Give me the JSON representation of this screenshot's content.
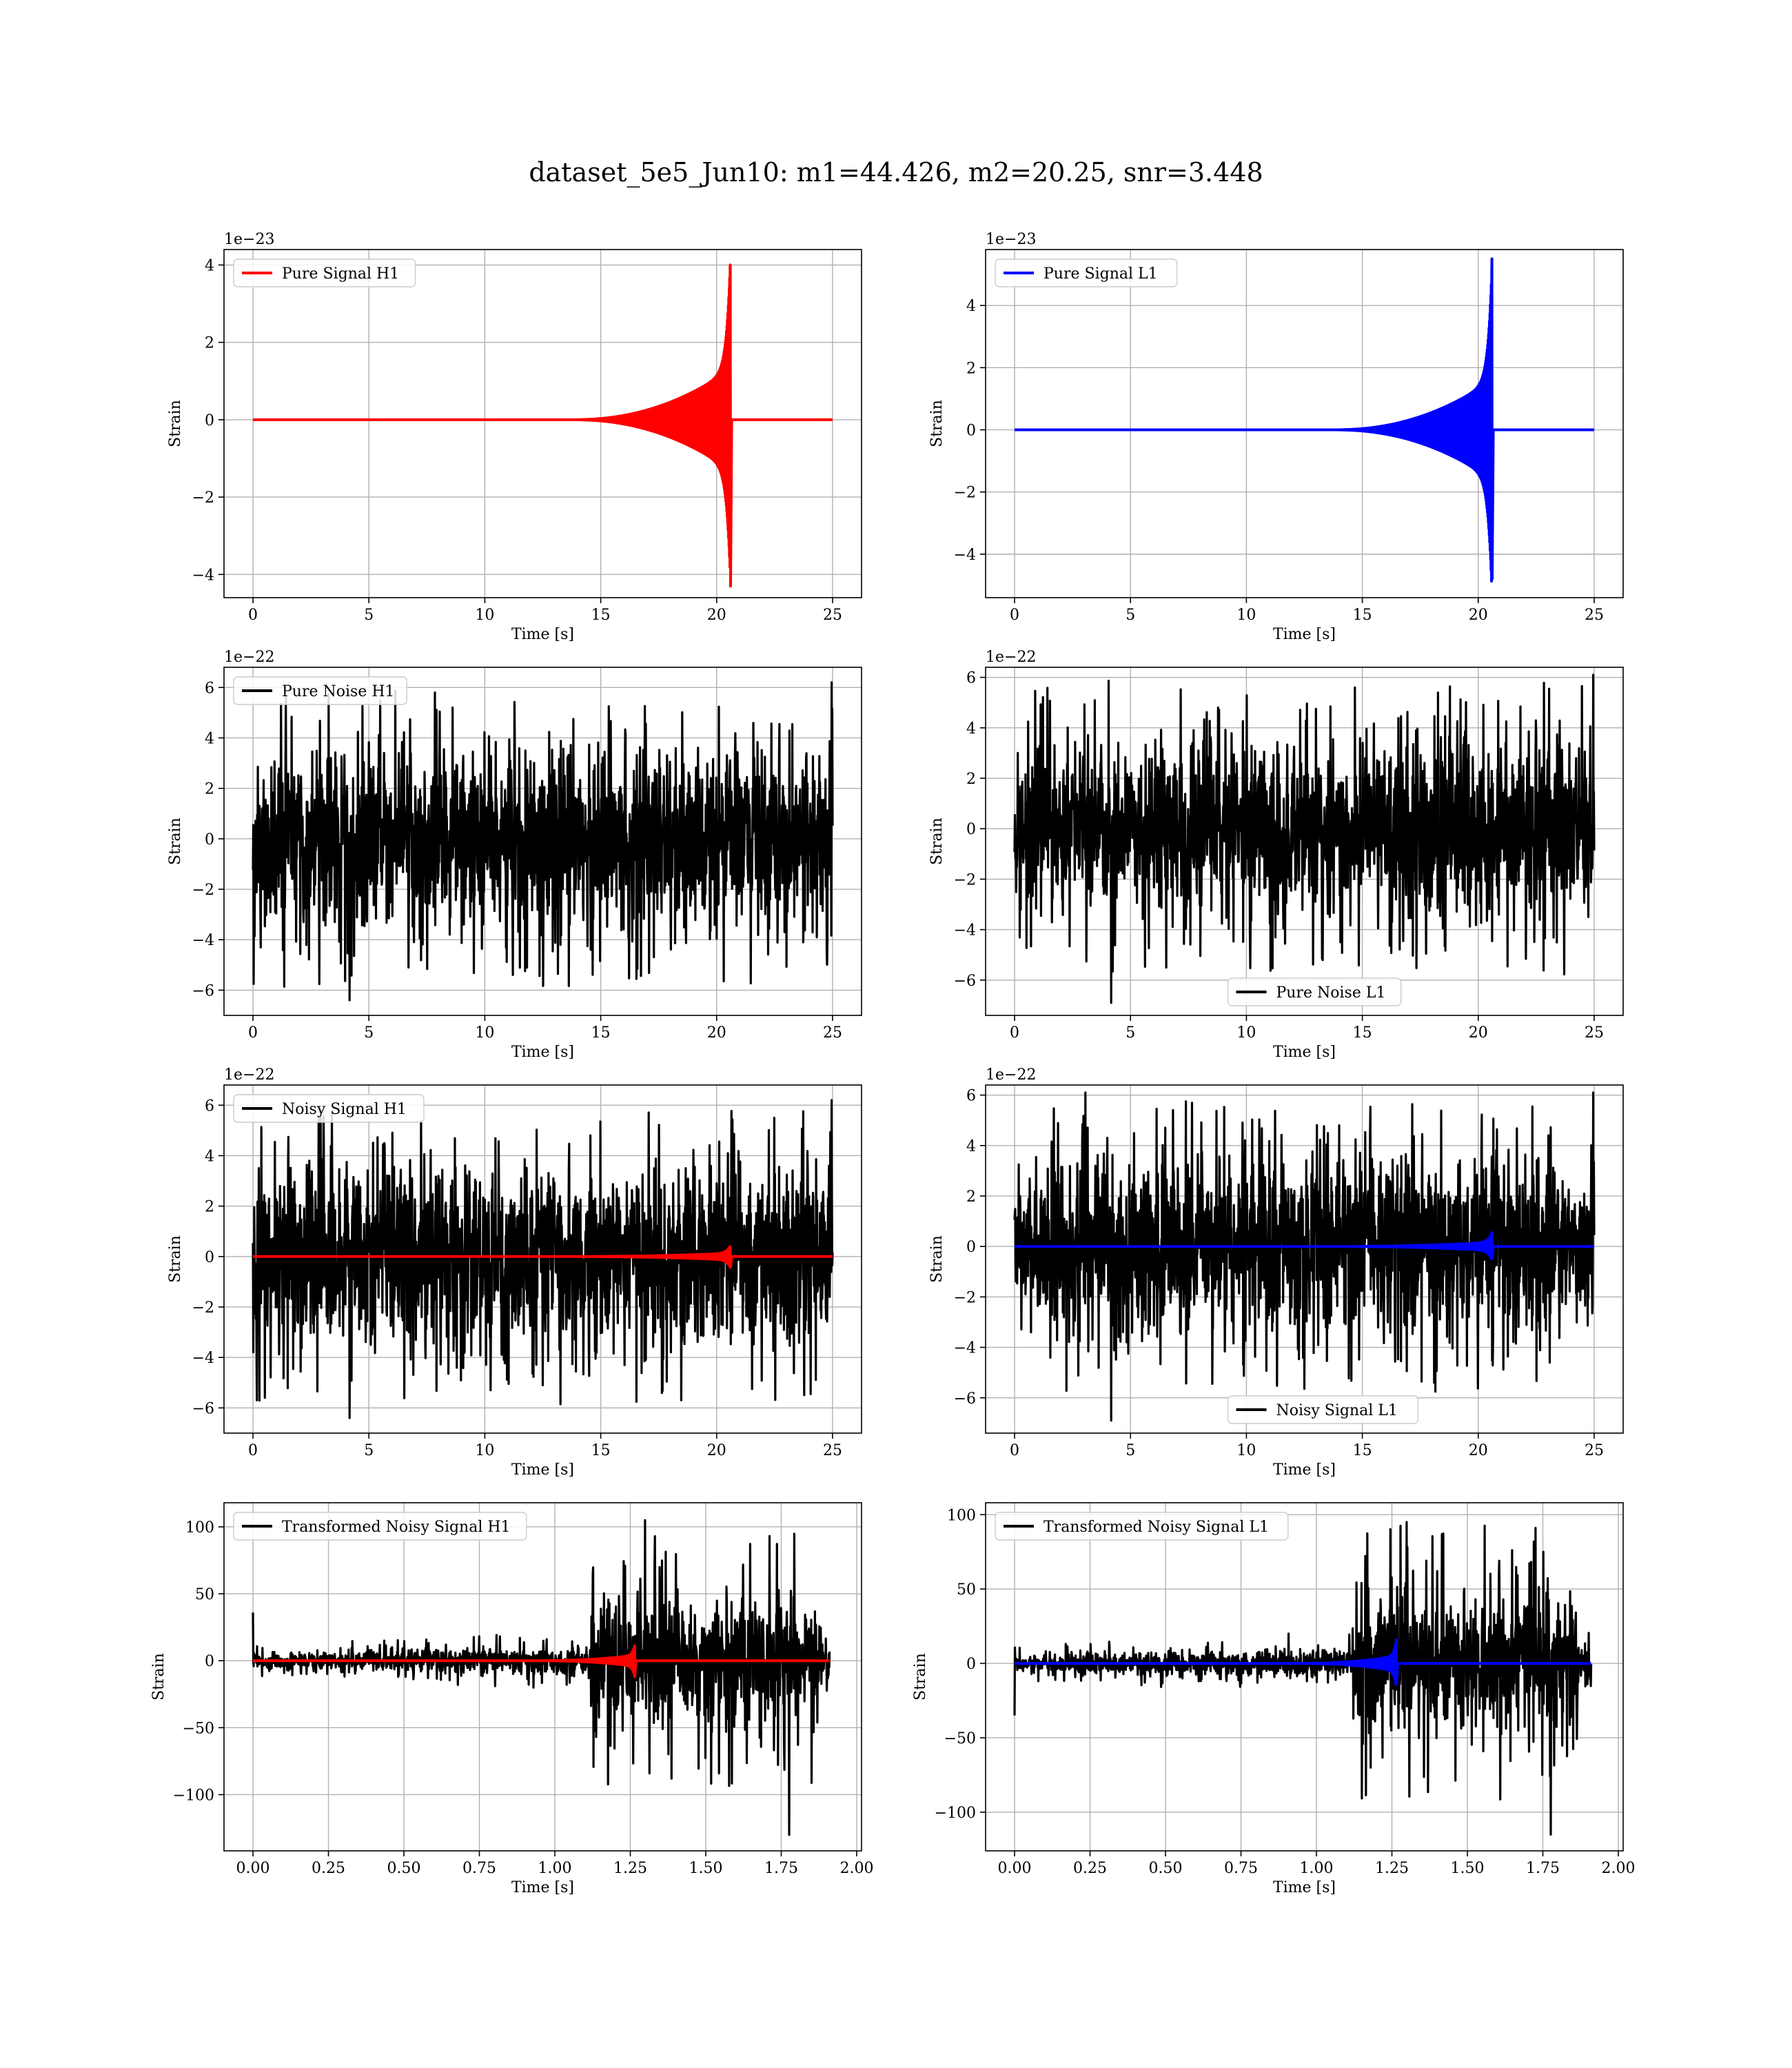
{
  "figure": {
    "title": "dataset_5e5_Jun10: m1=44.426, m2=20.25, snr=3.448",
    "colors": {
      "h1": "#ff0000",
      "l1": "#0000ff",
      "noise": "#000000",
      "grid": "#b0b0b0",
      "axes": "#000000"
    }
  },
  "chart_data": [
    {
      "id": "pure-signal-h1",
      "type": "line",
      "title": "",
      "xlabel": "Time [s]",
      "ylabel": "Strain",
      "offset_text": "1e−23",
      "xlim": [
        -1.25,
        26.25
      ],
      "ylim": [
        -4.6,
        4.4
      ],
      "xticks": [
        0,
        5,
        10,
        15,
        20,
        25
      ],
      "xtick_labels": [
        "0",
        "5",
        "10",
        "15",
        "20",
        "25"
      ],
      "yticks": [
        -4,
        -2,
        0,
        2,
        4
      ],
      "ytick_labels": [
        "−4",
        "−2",
        "0",
        "2",
        "4"
      ],
      "grid": true,
      "legend_position": "upper-left",
      "series": [
        {
          "name": "Pure Signal H1",
          "color": "#ff0000",
          "kind": "chirp",
          "x_range": [
            0,
            25
          ],
          "merger_time": 20.6,
          "peak_up": 4.0,
          "peak_down": -4.3,
          "inspiral_amplitude": 1.3
        }
      ]
    },
    {
      "id": "pure-signal-l1",
      "type": "line",
      "title": "",
      "xlabel": "Time [s]",
      "ylabel": "Strain",
      "offset_text": "1e−23",
      "xlim": [
        -1.25,
        26.25
      ],
      "ylim": [
        -5.4,
        5.8
      ],
      "xticks": [
        0,
        5,
        10,
        15,
        20,
        25
      ],
      "xtick_labels": [
        "0",
        "5",
        "10",
        "15",
        "20",
        "25"
      ],
      "yticks": [
        -4,
        -2,
        0,
        2,
        4
      ],
      "ytick_labels": [
        "−4",
        "−2",
        "0",
        "2",
        "4"
      ],
      "grid": true,
      "legend_position": "upper-left",
      "series": [
        {
          "name": "Pure Signal L1",
          "color": "#0000ff",
          "kind": "chirp",
          "x_range": [
            0,
            25
          ],
          "merger_time": 20.6,
          "peak_up": 5.5,
          "peak_down": -4.8,
          "inspiral_amplitude": 1.6
        }
      ]
    },
    {
      "id": "pure-noise-h1",
      "type": "line",
      "title": "",
      "xlabel": "Time [s]",
      "ylabel": "Strain",
      "offset_text": "1e−22",
      "xlim": [
        -1.25,
        26.25
      ],
      "ylim": [
        -7.0,
        6.8
      ],
      "xticks": [
        0,
        5,
        10,
        15,
        20,
        25
      ],
      "xtick_labels": [
        "0",
        "5",
        "10",
        "15",
        "20",
        "25"
      ],
      "yticks": [
        -6,
        -4,
        -2,
        0,
        2,
        4,
        6
      ],
      "ytick_labels": [
        "−6",
        "−4",
        "−2",
        "0",
        "2",
        "4",
        "6"
      ],
      "grid": true,
      "legend_position": "upper-left",
      "series": [
        {
          "name": "Pure Noise H1",
          "color": "#000000",
          "kind": "noise",
          "x_range": [
            0,
            25
          ],
          "band": [
            -3.0,
            3.0
          ],
          "max": 6.2,
          "min": -6.4
        }
      ]
    },
    {
      "id": "pure-noise-l1",
      "type": "line",
      "title": "",
      "xlabel": "Time [s]",
      "ylabel": "Strain",
      "offset_text": "1e−22",
      "xlim": [
        -1.25,
        26.25
      ],
      "ylim": [
        -7.4,
        6.4
      ],
      "xticks": [
        0,
        5,
        10,
        15,
        20,
        25
      ],
      "xtick_labels": [
        "0",
        "5",
        "10",
        "15",
        "20",
        "25"
      ],
      "yticks": [
        -6,
        -4,
        -2,
        0,
        2,
        4,
        6
      ],
      "ytick_labels": [
        "−6",
        "−4",
        "−2",
        "0",
        "2",
        "4",
        "6"
      ],
      "grid": true,
      "legend_position": "lower-right",
      "series": [
        {
          "name": "Pure Noise L1",
          "color": "#000000",
          "kind": "noise",
          "x_range": [
            0,
            25
          ],
          "band": [
            -3.0,
            3.0
          ],
          "max": 6.1,
          "min": -6.9
        }
      ]
    },
    {
      "id": "noisy-signal-h1",
      "type": "line",
      "title": "",
      "xlabel": "Time [s]",
      "ylabel": "Strain",
      "offset_text": "1e−22",
      "xlim": [
        -1.25,
        26.25
      ],
      "ylim": [
        -7.0,
        6.8
      ],
      "xticks": [
        0,
        5,
        10,
        15,
        20,
        25
      ],
      "xtick_labels": [
        "0",
        "5",
        "10",
        "15",
        "20",
        "25"
      ],
      "yticks": [
        -6,
        -4,
        -2,
        0,
        2,
        4,
        6
      ],
      "ytick_labels": [
        "−6",
        "−4",
        "−2",
        "0",
        "2",
        "4",
        "6"
      ],
      "grid": true,
      "legend_position": "upper-left",
      "series": [
        {
          "name": "Noisy Signal H1",
          "color": "#000000",
          "kind": "noise",
          "x_range": [
            0,
            25
          ],
          "band": [
            -3.0,
            3.0
          ],
          "max": 6.2,
          "min": -6.4
        },
        {
          "color": "#ff0000",
          "kind": "chirp",
          "x_range": [
            0,
            25
          ],
          "merger_time": 20.6,
          "peak_up": 0.4,
          "peak_down": -0.43,
          "inspiral_amplitude": 0.13
        }
      ]
    },
    {
      "id": "noisy-signal-l1",
      "type": "line",
      "title": "",
      "xlabel": "Time [s]",
      "ylabel": "Strain",
      "offset_text": "1e−22",
      "xlim": [
        -1.25,
        26.25
      ],
      "ylim": [
        -7.4,
        6.4
      ],
      "xticks": [
        0,
        5,
        10,
        15,
        20,
        25
      ],
      "xtick_labels": [
        "0",
        "5",
        "10",
        "15",
        "20",
        "25"
      ],
      "yticks": [
        -6,
        -4,
        -2,
        0,
        2,
        4,
        6
      ],
      "ytick_labels": [
        "−6",
        "−4",
        "−2",
        "0",
        "2",
        "4",
        "6"
      ],
      "grid": true,
      "legend_position": "lower-right",
      "series": [
        {
          "name": "Noisy Signal L1",
          "color": "#000000",
          "kind": "noise",
          "x_range": [
            0,
            25
          ],
          "band": [
            -3.0,
            3.0
          ],
          "max": 6.1,
          "min": -6.9
        },
        {
          "color": "#0000ff",
          "kind": "chirp",
          "x_range": [
            0,
            25
          ],
          "merger_time": 20.6,
          "peak_up": 0.55,
          "peak_down": -0.48,
          "inspiral_amplitude": 0.16
        }
      ]
    },
    {
      "id": "transformed-noisy-signal-h1",
      "type": "line",
      "title": "",
      "xlabel": "Time [s]",
      "ylabel": "Strain",
      "offset_text": "",
      "xlim": [
        -0.096,
        2.016
      ],
      "ylim": [
        -142,
        118
      ],
      "xticks": [
        0,
        0.25,
        0.5,
        0.75,
        1.0,
        1.25,
        1.5,
        1.75,
        2.0
      ],
      "xtick_labels": [
        "0.00",
        "0.25",
        "0.50",
        "0.75",
        "1.00",
        "1.25",
        "1.50",
        "1.75",
        "2.00"
      ],
      "yticks": [
        -100,
        -50,
        0,
        50,
        100
      ],
      "ytick_labels": [
        "−100",
        "−50",
        "0",
        "50",
        "100"
      ],
      "grid": true,
      "legend_position": "upper-left",
      "series": [
        {
          "name": "Transformed Noisy Signal H1",
          "color": "#000000",
          "kind": "whitened",
          "x_range": [
            0,
            1.91
          ],
          "quiet_amplitude": 10,
          "loud_start": 1.12,
          "loud_end": 1.87,
          "loud_amplitude": 52,
          "max": 105,
          "min": -130,
          "start_spike": 36
        },
        {
          "color": "#ff0000",
          "kind": "chirp",
          "x_range": [
            0,
            1.91
          ],
          "merger_time": 1.265,
          "peak_up": 10,
          "peak_down": -12,
          "inspiral_amplitude": 4,
          "inspiral_start": 0.95
        }
      ]
    },
    {
      "id": "transformed-noisy-signal-l1",
      "type": "line",
      "title": "",
      "xlabel": "Time [s]",
      "ylabel": "Strain",
      "offset_text": "",
      "xlim": [
        -0.096,
        2.016
      ],
      "ylim": [
        -126,
        108
      ],
      "xticks": [
        0,
        0.25,
        0.5,
        0.75,
        1.0,
        1.25,
        1.5,
        1.75,
        2.0
      ],
      "xtick_labels": [
        "0.00",
        "0.25",
        "0.50",
        "0.75",
        "1.00",
        "1.25",
        "1.50",
        "1.75",
        "2.00"
      ],
      "yticks": [
        -100,
        -50,
        0,
        50,
        100
      ],
      "ytick_labels": [
        "−100",
        "−50",
        "0",
        "50",
        "100"
      ],
      "grid": true,
      "legend_position": "upper-left",
      "series": [
        {
          "name": "Transformed Noisy Signal L1",
          "color": "#000000",
          "kind": "whitened",
          "x_range": [
            0,
            1.91
          ],
          "quiet_amplitude": 10,
          "loud_start": 1.12,
          "loud_end": 1.87,
          "loud_amplitude": 50,
          "max": 95,
          "min": -115,
          "start_spike": -35
        },
        {
          "color": "#0000ff",
          "kind": "chirp",
          "x_range": [
            0,
            1.91
          ],
          "merger_time": 1.265,
          "peak_up": 16,
          "peak_down": -14,
          "inspiral_amplitude": 5,
          "inspiral_start": 0.95
        }
      ]
    }
  ]
}
